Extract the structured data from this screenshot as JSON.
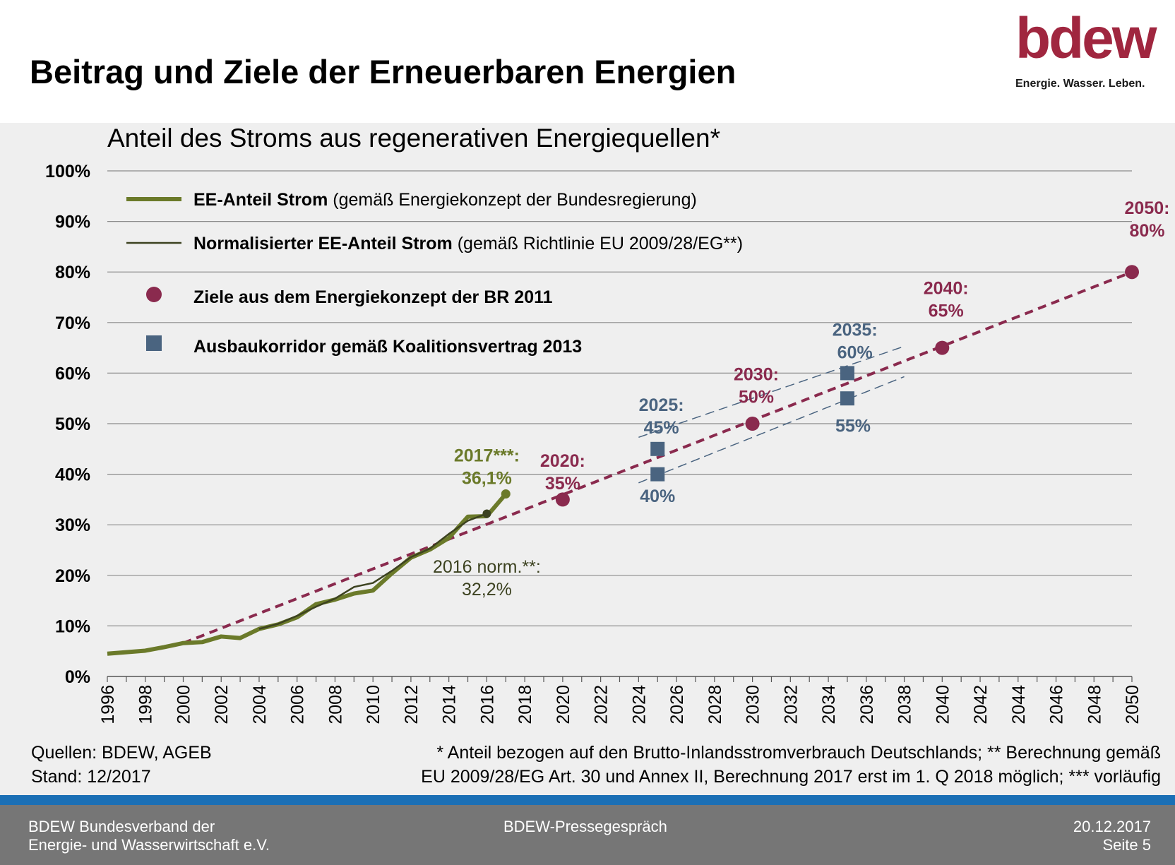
{
  "slide": {
    "title": "Beitrag und Ziele der Erneuerbaren Energien",
    "logo_word": "bdew",
    "logo_tagline": "Energie. Wasser. Leben.",
    "brand_color": "#a0263f"
  },
  "sources": {
    "line1": "Quellen: BDEW, AGEB",
    "line2": "Stand: 12/2017",
    "note1": "* Anteil bezogen auf den Brutto-Inlandsstromverbrauch Deutschlands; ** Berechnung gemäß",
    "note2": "EU 2009/28/EG Art. 30 und Annex II, Berechnung 2017 erst im 1. Q 2018 möglich; *** vorläufig"
  },
  "footer": {
    "org_line1": "BDEW Bundesverband der",
    "org_line2": "Energie- und Wasserwirtschaft e.V.",
    "event": "BDEW-Pressegespräch",
    "date": "20.12.2017",
    "page": "Seite 5"
  },
  "chart_data": {
    "type": "line",
    "title": "Anteil des Stroms aus regenerativen Energiequellen*",
    "xlim": [
      1996,
      2050
    ],
    "ylim": [
      0,
      100
    ],
    "x_ticks": [
      1996,
      1998,
      2000,
      2002,
      2004,
      2006,
      2008,
      2010,
      2012,
      2014,
      2016,
      2018,
      2020,
      2022,
      2024,
      2026,
      2028,
      2030,
      2032,
      2034,
      2036,
      2038,
      2040,
      2042,
      2044,
      2046,
      2048,
      2050
    ],
    "y_ticks": [
      0,
      10,
      20,
      30,
      40,
      50,
      60,
      70,
      80,
      90,
      100
    ],
    "y_tick_labels": [
      "0%",
      "10%",
      "20%",
      "30%",
      "40%",
      "50%",
      "60%",
      "70%",
      "80%",
      "90%",
      "100%"
    ],
    "grid": true,
    "legend_position": "top-left",
    "legend": [
      {
        "bold": "EE-Anteil Strom",
        "rest": " (gemäß Energiekonzept der Bundesregierung)",
        "symbol": "thick-line"
      },
      {
        "bold": "Normalisierter EE-Anteil Strom",
        "rest": " (gemäß Richtlinie EU 2009/28/EG**)",
        "symbol": "thin-line"
      },
      {
        "bold": "Ziele aus dem Energiekonzept der BR 2011",
        "rest": "",
        "symbol": "circle"
      },
      {
        "bold": "Ausbaukorridor gemäß Koalitionsvertrag 2013",
        "rest": "",
        "symbol": "square"
      }
    ],
    "colors": {
      "ee": "#6b7a2a",
      "norm": "#3c4220",
      "target": "#8a2a4e",
      "corridor": "#4a6480"
    },
    "series": [
      {
        "name": "EE-Anteil Strom",
        "x": [
          1996,
          1997,
          1998,
          1999,
          2000,
          2001,
          2002,
          2003,
          2004,
          2005,
          2006,
          2007,
          2008,
          2009,
          2010,
          2011,
          2012,
          2013,
          2014,
          2015,
          2016,
          2017
        ],
        "values": [
          4.5,
          4.8,
          5.1,
          5.8,
          6.6,
          6.8,
          7.9,
          7.6,
          9.4,
          10.3,
          11.7,
          14.3,
          15.2,
          16.4,
          17.0,
          20.4,
          23.5,
          25.1,
          27.4,
          31.6,
          31.7,
          36.1
        ]
      },
      {
        "name": "Normalisierter EE-Anteil Strom",
        "x": [
          2004,
          2005,
          2006,
          2007,
          2008,
          2009,
          2010,
          2011,
          2012,
          2013,
          2014,
          2015,
          2016
        ],
        "values": [
          9.4,
          10.4,
          12.0,
          13.8,
          15.4,
          17.7,
          18.5,
          20.9,
          23.6,
          25.3,
          28.2,
          30.8,
          32.2
        ]
      },
      {
        "name": "Ziele aus dem Energiekonzept der BR 2011",
        "x": [
          2020,
          2030,
          2040,
          2050
        ],
        "values": [
          35,
          50,
          65,
          80
        ]
      },
      {
        "name": "Ausbaukorridor gemäß Koalitionsvertrag 2013",
        "x": [
          2025,
          2025,
          2035,
          2035
        ],
        "values": [
          45,
          40,
          60,
          55
        ]
      }
    ],
    "target_trend": {
      "from": [
        2000,
        6.6
      ],
      "to": [
        2050,
        80
      ]
    },
    "corridor_guides": [
      {
        "from": [
          2024,
          47.3
        ],
        "to": [
          2038,
          65.3
        ]
      },
      {
        "from": [
          2024,
          38.3
        ],
        "to": [
          2038,
          59.3
        ]
      }
    ],
    "annotations": [
      {
        "lines": [
          "2017***:",
          "36,1%"
        ],
        "x": 2016,
        "y": 42.5,
        "color": "ee",
        "bold": true
      },
      {
        "lines": [
          "2016 norm.**:",
          "32,2%"
        ],
        "x": 2016,
        "y": 20.5,
        "color": "norm",
        "bold": false
      },
      {
        "lines": [
          "2020:",
          "35%"
        ],
        "x": 2020,
        "y": 41.5,
        "color": "target",
        "bold": true
      },
      {
        "lines": [
          "2030:",
          "50%"
        ],
        "x": 2030.2,
        "y": 58.6,
        "color": "target",
        "bold": true
      },
      {
        "lines": [
          "2040:",
          "65%"
        ],
        "x": 2040.2,
        "y": 75.6,
        "color": "target",
        "bold": true
      },
      {
        "lines": [
          "2050:",
          "80%"
        ],
        "x": 2050.8,
        "y": 91.5,
        "color": "target",
        "bold": true
      },
      {
        "lines": [
          "2025:",
          "45%"
        ],
        "x": 2025.2,
        "y": 52.5,
        "color": "corridor",
        "bold": true
      },
      {
        "lines": [
          "40%"
        ],
        "x": 2025,
        "y": 34.5,
        "color": "corridor",
        "bold": true
      },
      {
        "lines": [
          "2035:",
          "60%"
        ],
        "x": 2035.4,
        "y": 67.4,
        "color": "corridor",
        "bold": true
      },
      {
        "lines": [
          "55%"
        ],
        "x": 2035.3,
        "y": 48.4,
        "color": "corridor",
        "bold": true
      }
    ]
  }
}
